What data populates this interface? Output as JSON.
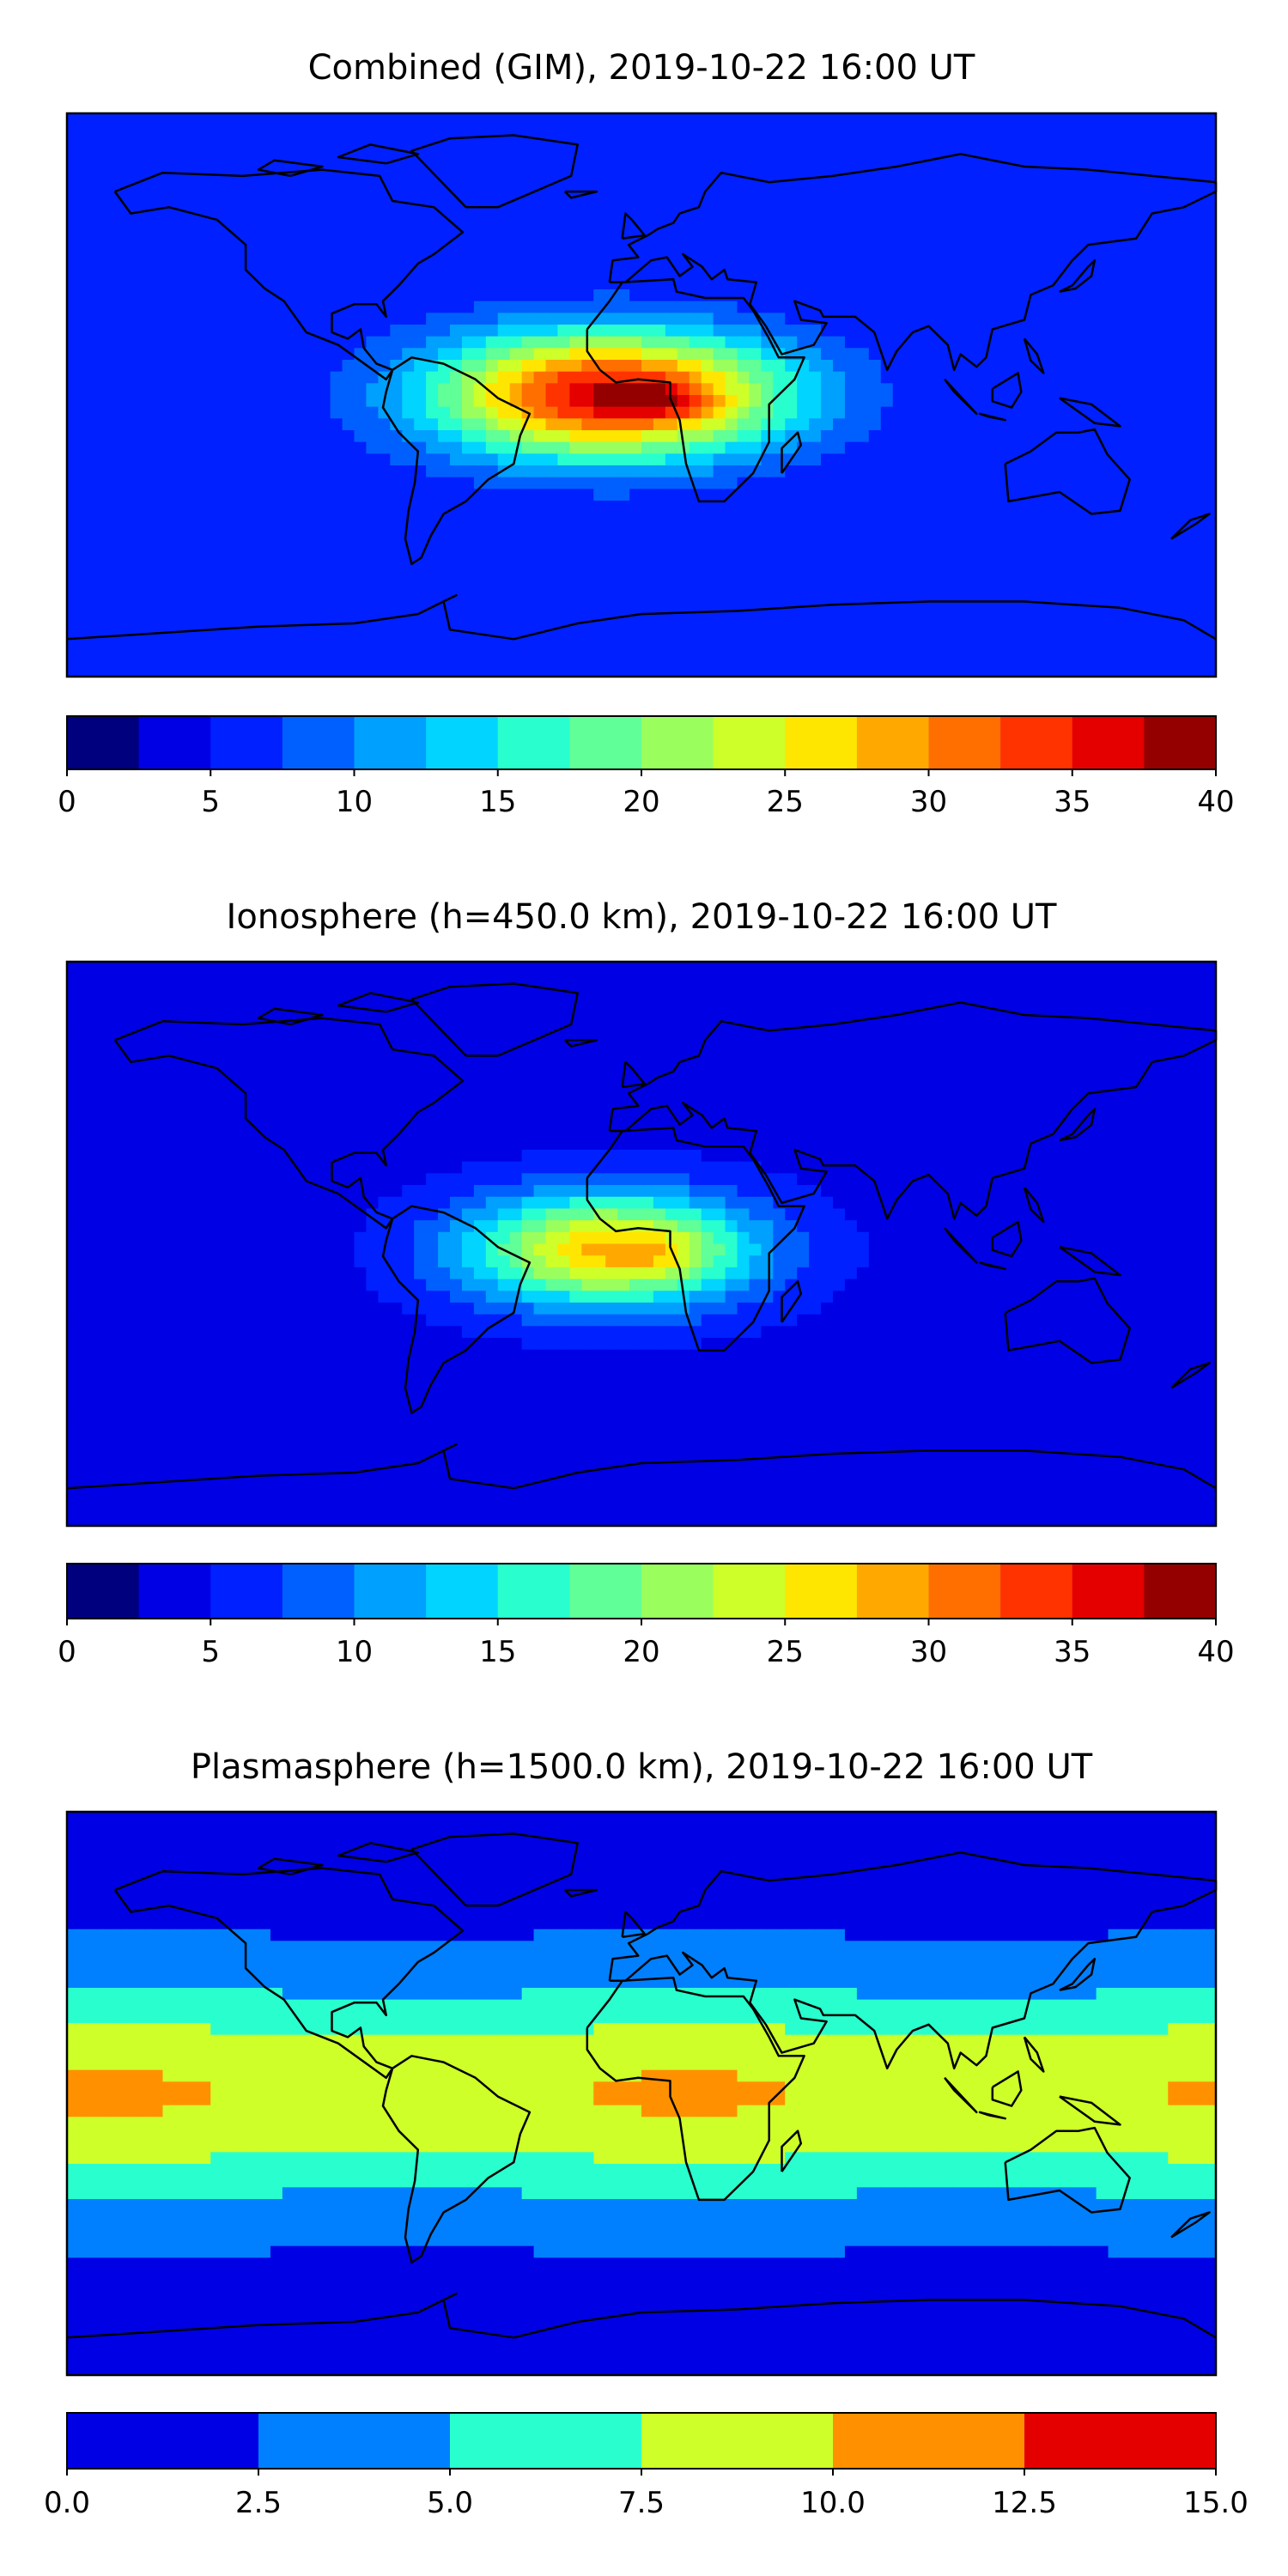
{
  "chart_data": [
    {
      "type": "heatmap",
      "title": "Combined (GIM), 2019-10-22 16:00 UT",
      "colorbar": {
        "levels": [
          0,
          2.5,
          5,
          7.5,
          10,
          12.5,
          15,
          17.5,
          20,
          22.5,
          25,
          27.5,
          30,
          32.5,
          35,
          37.5,
          40
        ],
        "colors": [
          "#00007f",
          "#0000e5",
          "#0020ff",
          "#0060ff",
          "#00a0ff",
          "#00d4ff",
          "#29ffce",
          "#60ff97",
          "#9aff5d",
          "#ceff29",
          "#ffe600",
          "#ffa900",
          "#ff6f00",
          "#ff3300",
          "#e50000",
          "#940000"
        ],
        "tick_values": [
          0,
          5,
          10,
          15,
          20,
          25,
          30,
          35,
          40
        ],
        "tick_labels": [
          "0",
          "5",
          "10",
          "15",
          "20",
          "25",
          "30",
          "35",
          "40"
        ]
      },
      "field": {
        "background": 5,
        "blobs": [
          {
            "lon": -10,
            "lat": 0,
            "value": 32,
            "lon_sigma": 55,
            "lat_sigma": 20
          },
          {
            "lon": 5,
            "lat": -2,
            "value": 7,
            "lon_sigma": 15,
            "lat_sigma": 5
          }
        ]
      }
    },
    {
      "type": "heatmap",
      "title": "Ionosphere  (h=450.0 km), 2019-10-22 16:00 UT",
      "colorbar": {
        "levels": [
          0,
          2.5,
          5,
          7.5,
          10,
          12.5,
          15,
          17.5,
          20,
          22.5,
          25,
          27.5,
          30,
          32.5,
          35,
          37.5,
          40
        ],
        "colors": [
          "#00007f",
          "#0000e5",
          "#0020ff",
          "#0060ff",
          "#00a0ff",
          "#00d4ff",
          "#29ffce",
          "#60ff97",
          "#9aff5d",
          "#ceff29",
          "#ffe600",
          "#ffa900",
          "#ff6f00",
          "#ff3300",
          "#e50000",
          "#940000"
        ],
        "tick_values": [
          0,
          5,
          10,
          15,
          20,
          25,
          30,
          35,
          40
        ],
        "tick_labels": [
          "0",
          "5",
          "10",
          "15",
          "20",
          "25",
          "30",
          "35",
          "40"
        ]
      },
      "field": {
        "background": 4,
        "blobs": [
          {
            "lon": -10,
            "lat": -2,
            "value": 24,
            "lon_sigma": 45,
            "lat_sigma": 18
          },
          {
            "lon": 5,
            "lat": -3,
            "value": 4,
            "lon_sigma": 12,
            "lat_sigma": 5
          }
        ]
      }
    },
    {
      "type": "heatmap",
      "title": "Plasmasphere (h=1500.0 km), 2019-10-22 16:00 UT",
      "colorbar": {
        "levels": [
          0.0,
          2.5,
          5.0,
          7.5,
          10.0,
          12.5,
          15.0
        ],
        "colors": [
          "#0000e5",
          "#0080ff",
          "#29ffce",
          "#ceff29",
          "#ff9100",
          "#e50000"
        ],
        "tick_values": [
          0.0,
          2.5,
          5.0,
          7.5,
          10.0,
          12.5,
          15.0
        ],
        "tick_labels": [
          "0.0",
          "2.5",
          "5.0",
          "7.5",
          "10.0",
          "12.5",
          "15.0"
        ]
      },
      "field": {
        "background": 1.5,
        "band": {
          "center_lat": 0,
          "sigma_lat": 35,
          "peak": 8.2
        }
      }
    }
  ]
}
